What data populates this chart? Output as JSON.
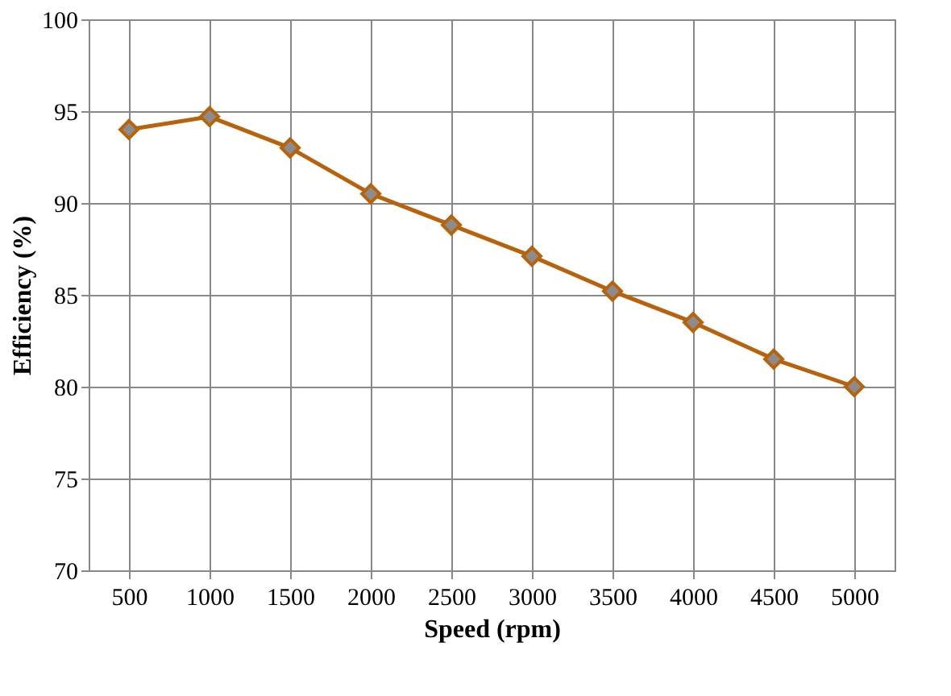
{
  "chart_data": {
    "type": "line",
    "xlabel": "Speed (rpm)",
    "ylabel": "Efficiency (%)",
    "categories": [
      "500",
      "1000",
      "1500",
      "2000",
      "2500",
      "3000",
      "3500",
      "4000",
      "4500",
      "5000"
    ],
    "series": [
      {
        "color": "#b8620b",
        "values": [
          94.0,
          94.7,
          93.0,
          90.5,
          88.8,
          87.1,
          85.2,
          83.5,
          81.5,
          80.0
        ]
      }
    ],
    "ylim": [
      70,
      100
    ],
    "yticks": [
      70,
      75,
      80,
      85,
      90,
      95,
      100
    ],
    "grid": true,
    "legend": false,
    "marker": "diamond",
    "line_style": "solid"
  }
}
